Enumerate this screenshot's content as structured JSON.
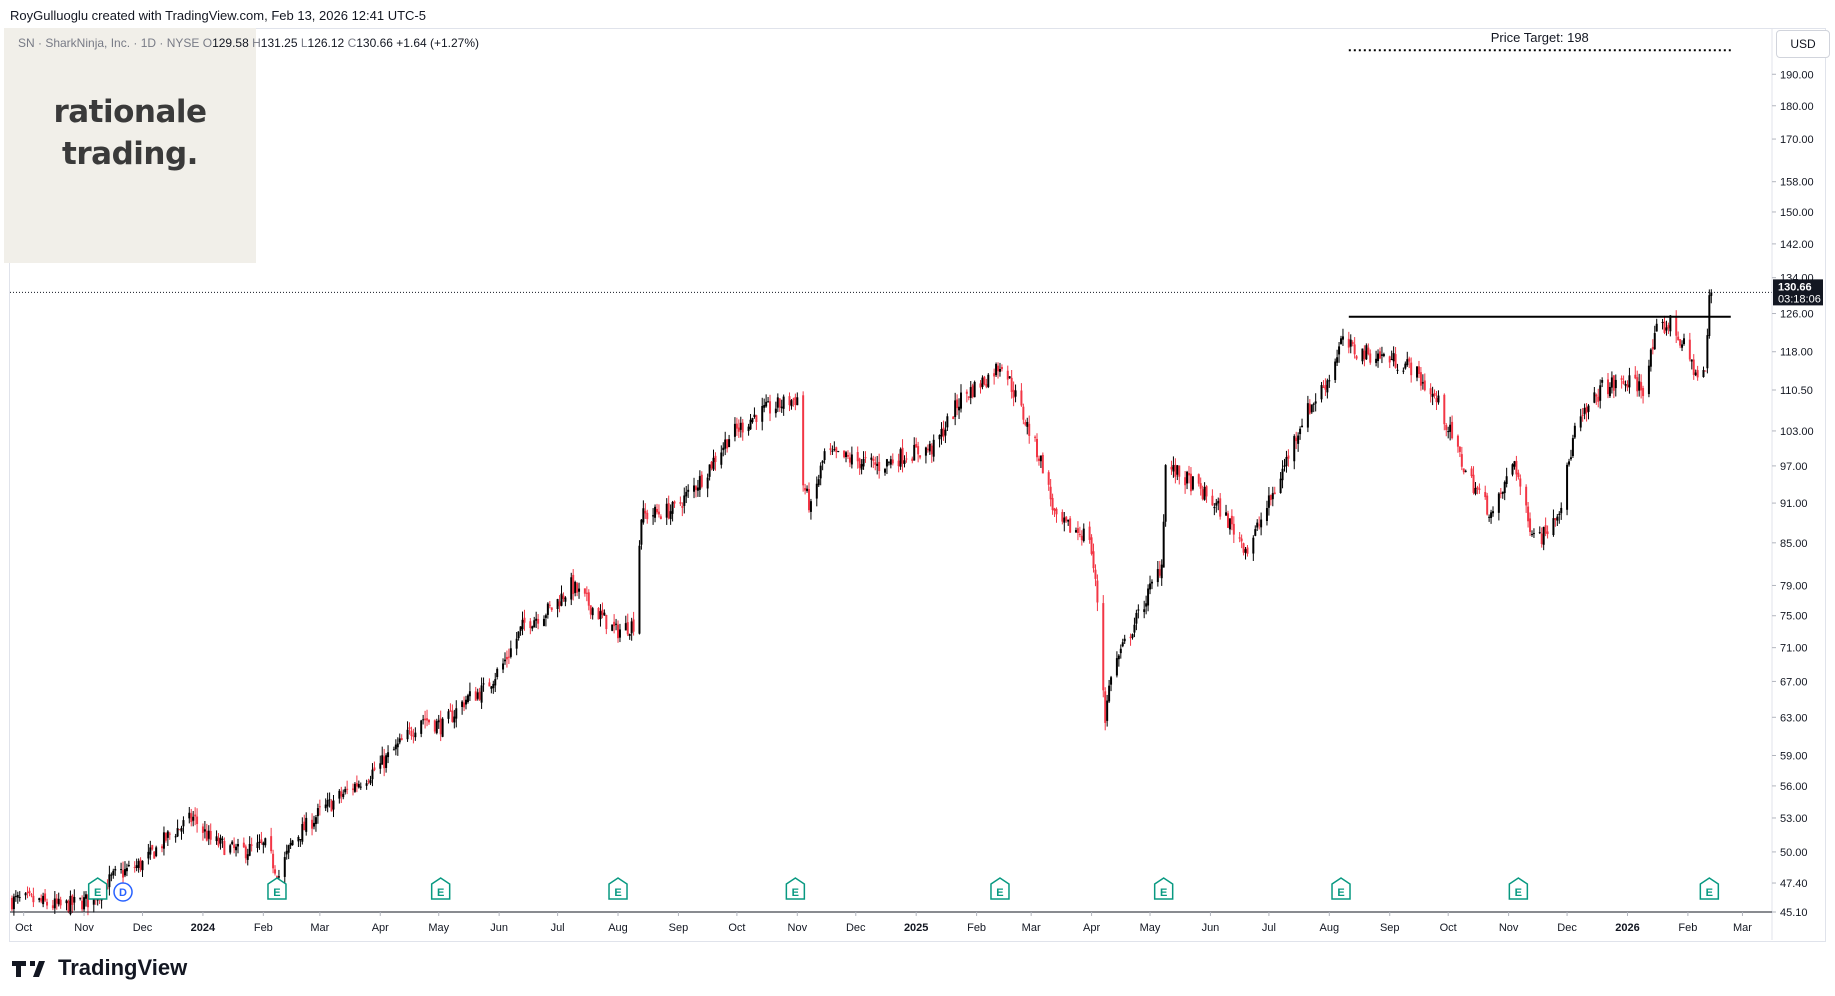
{
  "header": {
    "attribution": "RoyGulluoglu created with TradingView.com, Feb 13, 2026 12:41 UTC-5"
  },
  "symbol": {
    "name": "SN · SharkNinja, Inc. · 1D · NYSE",
    "open_label": "O",
    "open": "129.58",
    "high_label": "H",
    "high": "131.25",
    "low_label": "L",
    "low": "126.12",
    "close_label": "C",
    "close": "130.66",
    "change": "+1.64 (+1.27%)"
  },
  "watermark": {
    "line1": "rationale",
    "line2": "trading."
  },
  "currency": "USD",
  "price_label": {
    "price": "130.66",
    "countdown": "03:18:06"
  },
  "annotation": {
    "text": "Price Target: 198"
  },
  "footer": {
    "brand": "TradingView"
  },
  "colors": {
    "up": "#000000",
    "down": "#f23645",
    "accent": "#131722",
    "earnings": "#089981",
    "dividend": "#2962ff"
  },
  "earnings_markers": {
    "label": "E",
    "dates": [
      "2023-11-08",
      "2024-02-08",
      "2024-05-02",
      "2024-08-01",
      "2024-10-31",
      "2025-02-13",
      "2025-05-08",
      "2025-08-07",
      "2025-11-06",
      "2026-02-12"
    ]
  },
  "dividend_marker": {
    "label": "D",
    "date": "2023-11-21"
  },
  "chart_data": {
    "type": "candlestick",
    "title": "",
    "scale": "log",
    "x_range": [
      "2023-09-24",
      "2026-03-10"
    ],
    "y_range": [
      45.1,
      205
    ],
    "x_ticks": [
      {
        "label": "Oct",
        "date": "2023-10-01",
        "bold": false
      },
      {
        "label": "Nov",
        "date": "2023-11-01",
        "bold": false
      },
      {
        "label": "Dec",
        "date": "2023-12-01",
        "bold": false
      },
      {
        "label": "2024",
        "date": "2024-01-01",
        "bold": true
      },
      {
        "label": "Feb",
        "date": "2024-02-01",
        "bold": false
      },
      {
        "label": "Mar",
        "date": "2024-03-01",
        "bold": false
      },
      {
        "label": "Apr",
        "date": "2024-04-01",
        "bold": false
      },
      {
        "label": "May",
        "date": "2024-05-01",
        "bold": false
      },
      {
        "label": "Jun",
        "date": "2024-06-01",
        "bold": false
      },
      {
        "label": "Jul",
        "date": "2024-07-01",
        "bold": false
      },
      {
        "label": "Aug",
        "date": "2024-08-01",
        "bold": false
      },
      {
        "label": "Sep",
        "date": "2024-09-01",
        "bold": false
      },
      {
        "label": "Oct",
        "date": "2024-10-01",
        "bold": false
      },
      {
        "label": "Nov",
        "date": "2024-11-01",
        "bold": false
      },
      {
        "label": "Dec",
        "date": "2024-12-01",
        "bold": false
      },
      {
        "label": "2025",
        "date": "2025-01-01",
        "bold": true
      },
      {
        "label": "Feb",
        "date": "2025-02-01",
        "bold": false
      },
      {
        "label": "Mar",
        "date": "2025-03-01",
        "bold": false
      },
      {
        "label": "Apr",
        "date": "2025-04-01",
        "bold": false
      },
      {
        "label": "May",
        "date": "2025-05-01",
        "bold": false
      },
      {
        "label": "Jun",
        "date": "2025-06-01",
        "bold": false
      },
      {
        "label": "Jul",
        "date": "2025-07-01",
        "bold": false
      },
      {
        "label": "Aug",
        "date": "2025-08-01",
        "bold": false
      },
      {
        "label": "Sep",
        "date": "2025-09-01",
        "bold": false
      },
      {
        "label": "Oct",
        "date": "2025-10-01",
        "bold": false
      },
      {
        "label": "Nov",
        "date": "2025-11-01",
        "bold": false
      },
      {
        "label": "Dec",
        "date": "2025-12-01",
        "bold": false
      },
      {
        "label": "2026",
        "date": "2026-01-01",
        "bold": true
      },
      {
        "label": "Feb",
        "date": "2026-02-01",
        "bold": false
      },
      {
        "label": "Mar",
        "date": "2026-03-01",
        "bold": false
      }
    ],
    "y_ticks": [
      "190.00",
      "180.00",
      "170.00",
      "158.00",
      "150.00",
      "142.00",
      "134.00",
      "126.00",
      "118.00",
      "110.50",
      "103.00",
      "97.00",
      "91.00",
      "85.00",
      "79.00",
      "75.00",
      "71.00",
      "67.00",
      "63.00",
      "59.00",
      "56.00",
      "53.00",
      "50.00",
      "47.40",
      "45.10"
    ],
    "price_path": [
      [
        "2023-09-25",
        46
      ],
      [
        "2023-10-05",
        46
      ],
      [
        "2023-10-20",
        45.5
      ],
      [
        "2023-11-03",
        46
      ],
      [
        "2023-11-17",
        48
      ],
      [
        "2023-12-01",
        49
      ],
      [
        "2023-12-15",
        51.5
      ],
      [
        "2023-12-27",
        53
      ],
      [
        "2024-01-05",
        51
      ],
      [
        "2024-01-19",
        50
      ],
      [
        "2024-02-02",
        50.5
      ],
      [
        "2024-02-09",
        48
      ],
      [
        "2024-02-16",
        51
      ],
      [
        "2024-03-01",
        53.5
      ],
      [
        "2024-03-15",
        55.5
      ],
      [
        "2024-04-01",
        58
      ],
      [
        "2024-04-15",
        61
      ],
      [
        "2024-04-22",
        63
      ],
      [
        "2024-05-03",
        62
      ],
      [
        "2024-05-15",
        65
      ],
      [
        "2024-05-24",
        66
      ],
      [
        "2024-06-03",
        69
      ],
      [
        "2024-06-14",
        74
      ],
      [
        "2024-06-28",
        76
      ],
      [
        "2024-07-08",
        79
      ],
      [
        "2024-07-19",
        76
      ],
      [
        "2024-07-31",
        73
      ],
      [
        "2024-08-09",
        74
      ],
      [
        "2024-08-13",
        89
      ],
      [
        "2024-08-30",
        90
      ],
      [
        "2024-09-13",
        95
      ],
      [
        "2024-09-27",
        102
      ],
      [
        "2024-10-11",
        106
      ],
      [
        "2024-10-25",
        108
      ],
      [
        "2024-11-01",
        109
      ],
      [
        "2024-11-04",
        94
      ],
      [
        "2024-11-08",
        90
      ],
      [
        "2024-11-15",
        99
      ],
      [
        "2024-11-29",
        98
      ],
      [
        "2024-12-13",
        97
      ],
      [
        "2024-12-27",
        99
      ],
      [
        "2025-01-10",
        100
      ],
      [
        "2025-01-24",
        109
      ],
      [
        "2025-02-07",
        113
      ],
      [
        "2025-02-14",
        116
      ],
      [
        "2025-02-28",
        103
      ],
      [
        "2025-03-07",
        97
      ],
      [
        "2025-03-14",
        88
      ],
      [
        "2025-03-31",
        86
      ],
      [
        "2025-04-04",
        77
      ],
      [
        "2025-04-08",
        63
      ],
      [
        "2025-04-11",
        68
      ],
      [
        "2025-04-25",
        75
      ],
      [
        "2025-05-07",
        82
      ],
      [
        "2025-05-09",
        97
      ],
      [
        "2025-05-23",
        94
      ],
      [
        "2025-06-06",
        90
      ],
      [
        "2025-06-20",
        84
      ],
      [
        "2025-07-04",
        93
      ],
      [
        "2025-07-18",
        105
      ],
      [
        "2025-08-01",
        113
      ],
      [
        "2025-08-07",
        120
      ],
      [
        "2025-08-15",
        118
      ],
      [
        "2025-08-29",
        117
      ],
      [
        "2025-09-12",
        115
      ],
      [
        "2025-09-26",
        108
      ],
      [
        "2025-10-10",
        96
      ],
      [
        "2025-10-24",
        89
      ],
      [
        "2025-11-04",
        98
      ],
      [
        "2025-11-11",
        88
      ],
      [
        "2025-11-18",
        86
      ],
      [
        "2025-11-28",
        91
      ],
      [
        "2025-12-05",
        103
      ],
      [
        "2025-12-19",
        111
      ],
      [
        "2026-01-02",
        112
      ],
      [
        "2026-01-09",
        111
      ],
      [
        "2026-01-16",
        122
      ],
      [
        "2026-01-23",
        124
      ],
      [
        "2026-01-30",
        119
      ],
      [
        "2026-02-06",
        113
      ],
      [
        "2026-02-10",
        114
      ],
      [
        "2026-02-12",
        129
      ],
      [
        "2026-02-13",
        130.66
      ]
    ],
    "resistance": {
      "price": 125.3,
      "from": "2025-08-11",
      "to": "2026-02-23"
    },
    "target": {
      "price": 198,
      "from": "2025-08-11",
      "to": "2026-02-23"
    },
    "last_price": 130.66
  }
}
